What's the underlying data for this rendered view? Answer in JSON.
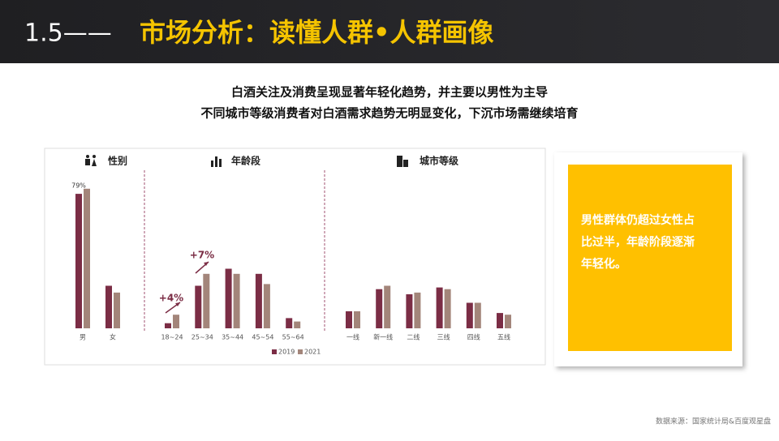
{
  "header": {
    "number": "1.5——",
    "title": "市场分析：读懂人群•人群画像"
  },
  "subtitle": [
    "白酒关注及消费呈现显著年轻化趋势，并主要以男性为主导",
    "不同城市等级消费者对白酒需求趋势无明显变化，下沉市场需继续培育"
  ],
  "chart_data": [
    {
      "type": "bar",
      "title": "性别",
      "categories": [
        "男",
        "女"
      ],
      "series": [
        {
          "name": "2019",
          "color": "#7b2d45",
          "values": [
            79,
            25
          ],
          "value_labels": [
            "79%",
            null
          ]
        },
        {
          "name": "2021",
          "color": "#a3857a",
          "values": [
            82,
            21
          ]
        }
      ]
    },
    {
      "type": "bar",
      "title": "年龄段",
      "categories": [
        "18~24",
        "25~34",
        "35~44",
        "45~54",
        "55~64"
      ],
      "series": [
        {
          "name": "2019",
          "color": "#7b2d45",
          "values": [
            3,
            25,
            35,
            32,
            6
          ]
        },
        {
          "name": "2021",
          "color": "#a3857a",
          "values": [
            8,
            32,
            32,
            26,
            4
          ]
        }
      ],
      "annotations": [
        "+4%",
        "+7%"
      ]
    },
    {
      "type": "bar",
      "title": "城市等级",
      "categories": [
        "一线",
        "新一线",
        "二线",
        "三线",
        "四线",
        "五线"
      ],
      "series": [
        {
          "name": "2019",
          "color": "#7b2d45",
          "values": [
            10,
            23,
            20,
            24,
            15,
            9
          ]
        },
        {
          "name": "2021",
          "color": "#a3857a",
          "values": [
            10,
            25,
            21,
            23,
            15,
            8
          ]
        }
      ]
    }
  ],
  "callout": [
    "男性群体仍超过女性占",
    "比过半，年龄阶段逐渐",
    "年轻化。"
  ],
  "source": "数据来源：国家统计局&百度观星盘"
}
